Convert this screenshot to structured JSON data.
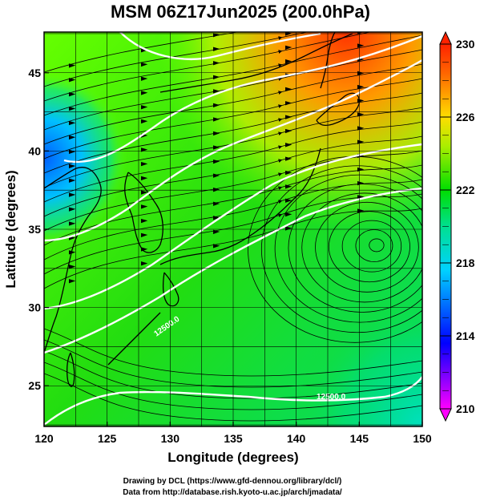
{
  "title": "MSM 06Z17Jun2025 (200.0hPa)",
  "xlabel": "Longitude (degrees)",
  "ylabel": "Latitude  (degrees)",
  "x_ticks": [
    120,
    125,
    130,
    135,
    140,
    145,
    150
  ],
  "y_ticks": [
    25,
    30,
    35,
    40,
    45
  ],
  "xlim": [
    120,
    150
  ],
  "ylim": [
    22.4,
    47.6
  ],
  "colorbar": {
    "ticks": [
      210,
      214,
      218,
      222,
      226,
      230
    ],
    "range": [
      210,
      230
    ],
    "colors": [
      "#ff00ff",
      "#0000ff",
      "#00d2ff",
      "#00e0a0",
      "#00dd00",
      "#aaee00",
      "#ffdd00",
      "#ff6600",
      "#ff2200"
    ]
  },
  "credits": [
    "Drawing by DCL (https://www.gfd-dennou.org/library/dcl/)",
    "Data from http://database.rish.kyoto-u.ac.jp/arch/jmadata/"
  ],
  "chart_data": {
    "type": "heatmap",
    "title": "MSM 06Z17Jun2025 (200.0hPa)",
    "xlabel": "Longitude (degrees)",
    "ylabel": "Latitude  (degrees)",
    "xlim": [
      120,
      150
    ],
    "ylim": [
      22.4,
      47.6
    ],
    "color_range": [
      210,
      230
    ],
    "contour_labels": [
      {
        "text": "12500.0",
        "lon": 146.0,
        "lat": 24.6
      },
      {
        "text": "12500.0",
        "lon": 131.0,
        "lat": 30.5
      }
    ],
    "high_center": {
      "lon": 146.5,
      "lat": 34.0
    }
  }
}
